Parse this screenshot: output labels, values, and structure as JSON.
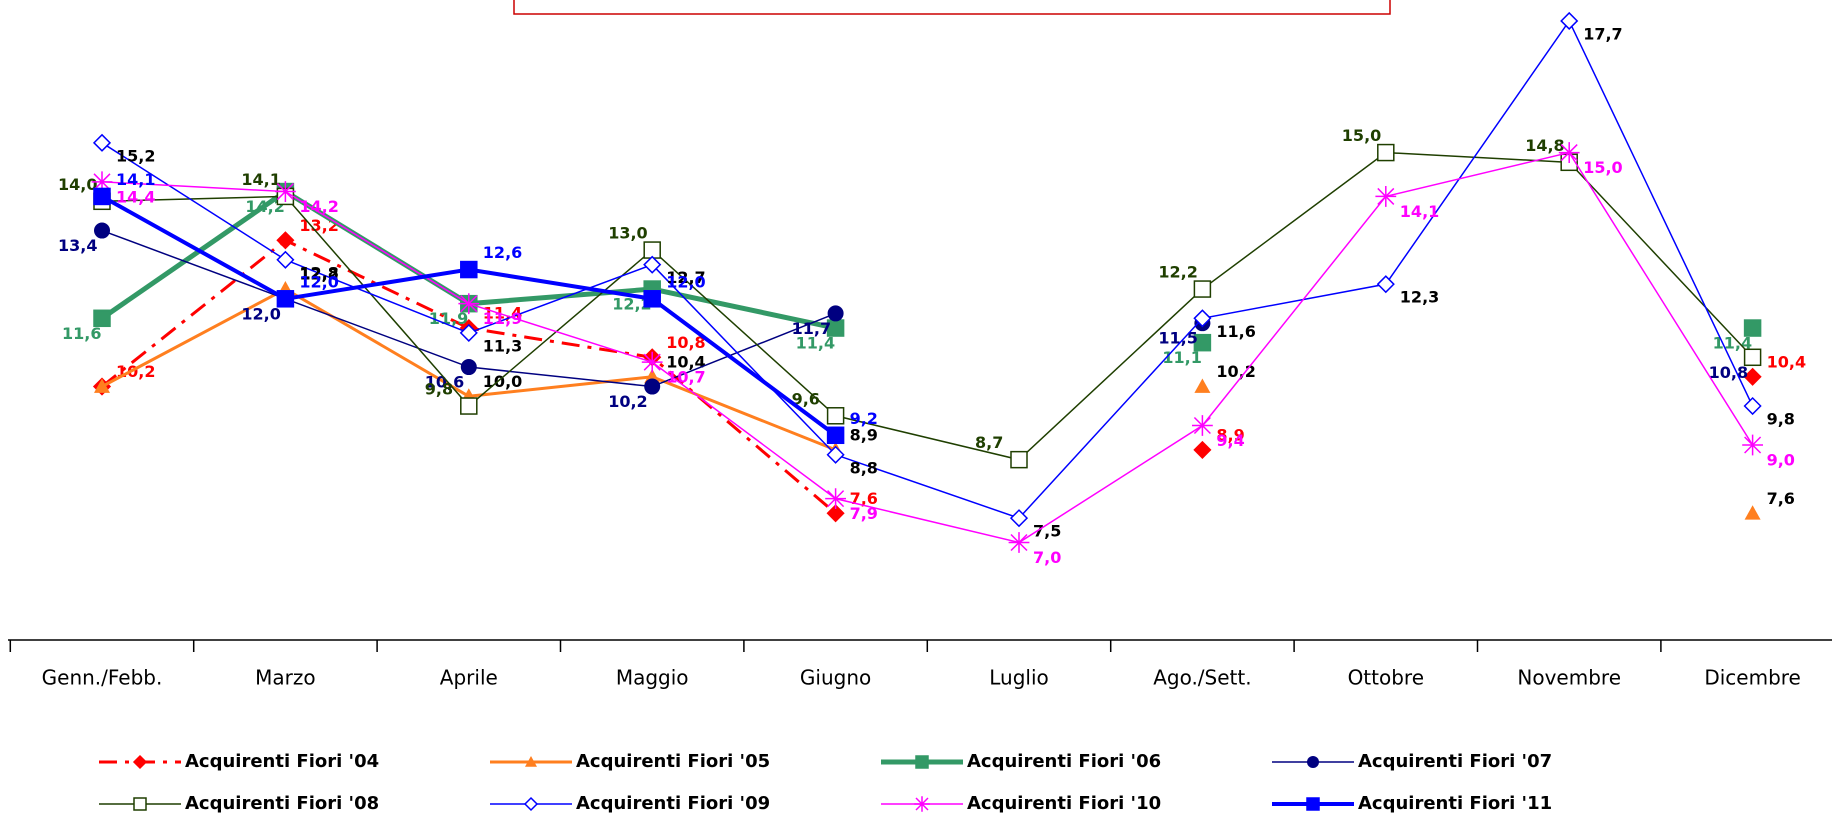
{
  "chart_data": {
    "type": "line",
    "categories": [
      "Genn./Febb.",
      "Marzo",
      "Aprile",
      "Maggio",
      "Giugno",
      "Luglio",
      "Ago./Sett.",
      "Ottobre",
      "Novembre",
      "Dicembre"
    ],
    "ylim": [
      5,
      18.13
    ],
    "series": [
      {
        "name": "Acquirenti Fiori '04",
        "color": "#ff0000",
        "label_color": "#ff0000",
        "marker": "diamond",
        "dash": "dash-dot",
        "values": [
          10.2,
          13.2,
          11.4,
          10.8,
          7.6,
          null,
          8.9,
          null,
          null,
          10.4
        ],
        "value_labels": [
          "10,2",
          "13,2",
          "11,4",
          "10,8",
          "7,6",
          null,
          "8,9",
          null,
          null,
          "10,4"
        ]
      },
      {
        "name": "Acquirenti Fiori '05",
        "color": "#ff7f1f",
        "label_color": "#000000",
        "marker": "triangle",
        "values": [
          10.2,
          12.2,
          10.0,
          10.4,
          8.9,
          null,
          10.2,
          null,
          null,
          7.6
        ],
        "value_labels": [
          null,
          "12,2",
          "10,0",
          "10,4",
          "8,9",
          null,
          "10,2",
          null,
          null,
          "7,6"
        ]
      },
      {
        "name": "Acquirenti Fiori '06",
        "color": "#339966",
        "label_color": "#339966",
        "marker": "square",
        "values": [
          11.6,
          14.2,
          11.9,
          12.2,
          11.4,
          null,
          11.1,
          null,
          null,
          11.4
        ],
        "value_labels": [
          "11,6",
          "14,2",
          "11,9",
          "12,2",
          "11,4",
          null,
          "11,1",
          null,
          null,
          "11,4"
        ]
      },
      {
        "name": "Acquirenti Fiori '07",
        "color": "#000080",
        "label_color": "#000080",
        "marker": "circle",
        "values": [
          13.4,
          12.0,
          10.6,
          10.2,
          11.7,
          null,
          11.5,
          null,
          null,
          10.8
        ],
        "value_labels": [
          "13,4",
          "12,0",
          "10,6",
          "10,2",
          "11,7",
          null,
          "11,5",
          null,
          null,
          "10,8"
        ]
      },
      {
        "name": "Acquirenti Fiori '08",
        "color": "#1f3f00",
        "label_color": "#1f3f00",
        "marker": "open-square",
        "values": [
          14.0,
          14.1,
          9.8,
          13.0,
          9.6,
          8.7,
          12.2,
          15.0,
          14.8,
          10.8
        ],
        "value_labels": [
          "14,0",
          "14,1",
          "9,8",
          "13,0",
          "9,6",
          "8,7",
          "12,2",
          "15,0",
          "14,8",
          null
        ]
      },
      {
        "name": "Acquirenti Fiori '09",
        "color": "#0000ff",
        "label_color": "#000000",
        "marker": "open-diamond",
        "values": [
          15.2,
          12.8,
          11.3,
          12.7,
          8.8,
          7.5,
          11.6,
          12.3,
          17.7,
          9.8
        ],
        "value_labels": [
          "15,2",
          "12,8",
          "11,3",
          "12,7",
          "8,8",
          "7,5",
          "11,6",
          "12,3",
          "17,7",
          "9,8"
        ]
      },
      {
        "name": "Acquirenti Fiori '10",
        "color": "#ff00ff",
        "label_color": "#ff00ff",
        "marker": "star",
        "values": [
          14.4,
          14.2,
          11.9,
          10.7,
          7.9,
          7.0,
          9.4,
          14.1,
          15.0,
          9.0
        ],
        "value_labels": [
          "14,4",
          "14,2",
          "11,9",
          "10,7",
          "7,9",
          "7,0",
          "9,4",
          "14,1",
          "15,0",
          "9,0"
        ]
      },
      {
        "name": "Acquirenti Fiori '11",
        "color": "#0000ff",
        "label_color": "#0000ff",
        "marker": "square",
        "values": [
          14.1,
          12.0,
          12.6,
          12.0,
          9.2,
          null,
          null,
          null,
          null,
          null
        ],
        "value_labels": [
          "14,1",
          "12,0",
          "12,6",
          "12,0",
          "9,2",
          null,
          null,
          null,
          null,
          null
        ]
      }
    ]
  }
}
